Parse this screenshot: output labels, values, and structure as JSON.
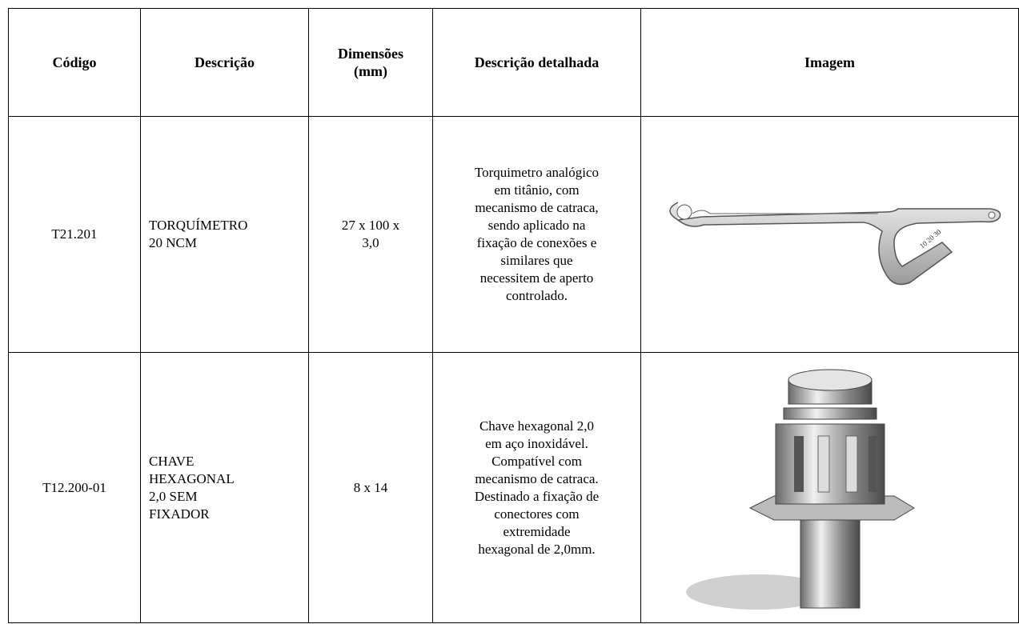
{
  "table": {
    "headers": [
      [
        "Código"
      ],
      [
        "Descrição"
      ],
      [
        "Dimensões",
        "(mm)"
      ],
      [
        "Descrição  detalhada"
      ],
      [
        "Imagem"
      ]
    ],
    "rows": [
      {
        "code": "T21.201",
        "description": [
          "TORQUÍMETRO",
          "20 NCM"
        ],
        "dimensions": [
          "27 x 100 x",
          "3,0"
        ],
        "details": [
          "Torquimetro analógico",
          "em titânio, com",
          "mecanismo de catraca,",
          "sendo aplicado na",
          "fixação de conexões e",
          "similares que",
          "necessitem de aperto",
          "controlado."
        ]
      },
      {
        "code": "T12.200-01",
        "description": [
          "CHAVE",
          "HEXAGONAL",
          "2,0 SEM",
          "FIXADOR"
        ],
        "dimensions": [
          "8 x 14"
        ],
        "details": [
          "Chave hexagonal 2,0",
          "em aço inoxidável.",
          "Compatível com",
          "mecanismo de catraca.",
          "Destinado a fixação de",
          "conectores com",
          "extremidade",
          "hexagonal de 2,0mm."
        ]
      }
    ]
  }
}
